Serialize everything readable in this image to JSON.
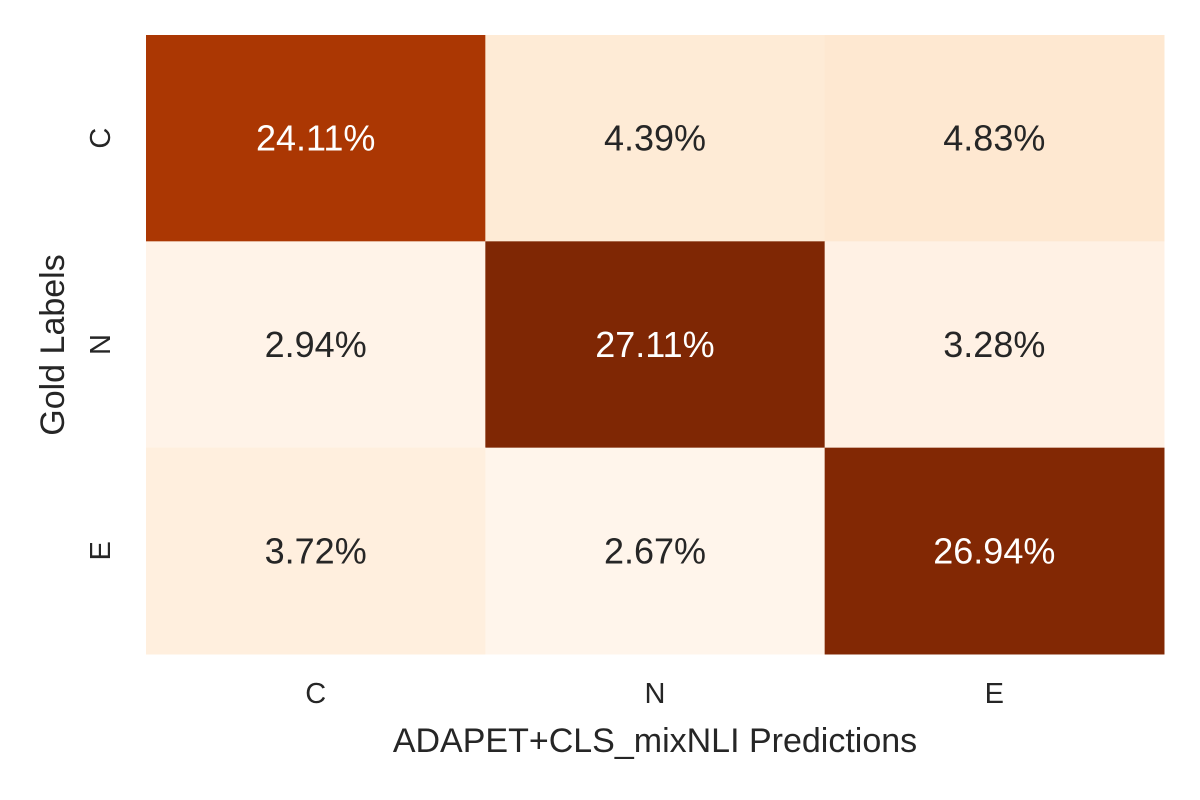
{
  "chart_data": {
    "type": "heatmap",
    "xlabel": "ADAPET+CLS_mixNLI Predictions",
    "ylabel": "Gold Labels",
    "x_categories": [
      "C",
      "N",
      "E"
    ],
    "y_categories": [
      "C",
      "N",
      "E"
    ],
    "values": [
      [
        24.11,
        4.39,
        4.83
      ],
      [
        2.94,
        27.11,
        3.28
      ],
      [
        3.72,
        2.67,
        26.94
      ]
    ],
    "value_labels": [
      [
        "24.11%",
        "4.39%",
        "4.83%"
      ],
      [
        "2.94%",
        "27.11%",
        "3.28%"
      ],
      [
        "3.72%",
        "2.67%",
        "26.94%"
      ]
    ],
    "colormap": "Oranges",
    "colors": [
      "#fff5eb",
      "#fdd0a2",
      "#fd8d3c",
      "#d94801",
      "#7f2704"
    ],
    "colorbar": false,
    "grid": false
  }
}
